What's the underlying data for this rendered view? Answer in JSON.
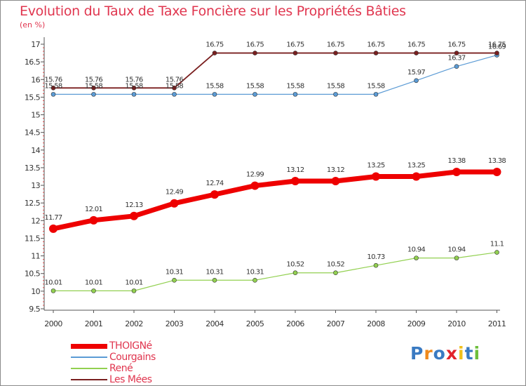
{
  "title": "Evolution du Taux de Taxe Foncière sur les Propriétés Bâties",
  "unit_label": "(en %)",
  "colors": {
    "title": "#e0364f",
    "THOIGNe": "#ee0000",
    "Courgains": "#5b9bd5",
    "Rene": "#92d050",
    "LesMees": "#7a1f1f"
  },
  "logo": {
    "text": "Proxiti",
    "letter_colors": [
      "#3a7ac2",
      "#f08a1c",
      "#3a7ac2",
      "#e2232b",
      "#f0c01c",
      "#3a7ac2",
      "#6dbf3b"
    ]
  },
  "chart_data": {
    "type": "line",
    "title": "Evolution du Taux de Taxe Foncière sur les Propriétés Bâties",
    "xlabel": "",
    "ylabel": "(en %)",
    "x": [
      "2000",
      "2001",
      "2002",
      "2003",
      "2004",
      "2005",
      "2006",
      "2007",
      "2008",
      "2009",
      "2010",
      "2011"
    ],
    "ylim": [
      9.5,
      17
    ],
    "yticks": [
      "9.5",
      "10",
      "10.5",
      "11",
      "11.5",
      "12",
      "12.5",
      "13",
      "13.5",
      "14",
      "14.5",
      "15",
      "15.5",
      "16",
      "16.5",
      "17"
    ],
    "series": [
      {
        "name": "THOIGNé",
        "key": "THOIGNe",
        "values": [
          11.77,
          12.01,
          12.13,
          12.49,
          12.74,
          12.99,
          13.12,
          13.12,
          13.25,
          13.25,
          13.38,
          13.38
        ],
        "labels": [
          "11.77",
          "12.01",
          "12.13",
          "12.49",
          "12.74",
          "12.99",
          "13.12",
          "13.12",
          "13.25",
          "13.25",
          "13.38",
          "13.38"
        ]
      },
      {
        "name": "Courgains",
        "key": "Courgains",
        "values": [
          15.58,
          15.58,
          15.58,
          15.58,
          15.58,
          15.58,
          15.58,
          15.58,
          15.58,
          15.97,
          16.37,
          16.69
        ],
        "labels": [
          "15.58",
          "15.58",
          "15.58",
          "15.58",
          "15.58",
          "15.58",
          "15.58",
          "15.58",
          "15.58",
          "15.97",
          "16.37",
          "16.69"
        ]
      },
      {
        "name": "René",
        "key": "Rene",
        "values": [
          10.01,
          10.01,
          10.01,
          10.31,
          10.31,
          10.31,
          10.52,
          10.52,
          10.73,
          10.94,
          10.94,
          11.1
        ],
        "labels": [
          "10.01",
          "10.01",
          "10.01",
          "10.31",
          "10.31",
          "10.31",
          "10.52",
          "10.52",
          "10.73",
          "10.94",
          "10.94",
          "11.1"
        ]
      },
      {
        "name": "Les Mées",
        "key": "LesMees",
        "values": [
          15.76,
          15.76,
          15.76,
          15.76,
          16.75,
          16.75,
          16.75,
          16.75,
          16.75,
          16.75,
          16.75,
          16.75
        ],
        "labels": [
          "15.76",
          "15.76",
          "15.76",
          "15.76",
          "16.75",
          "16.75",
          "16.75",
          "16.75",
          "16.75",
          "16.75",
          "16.75",
          "16.75"
        ]
      }
    ],
    "legend": [
      "THOIGNé",
      "Courgains",
      "René",
      "Les Mées"
    ],
    "legend_position": "bottom-left",
    "grid": false
  }
}
